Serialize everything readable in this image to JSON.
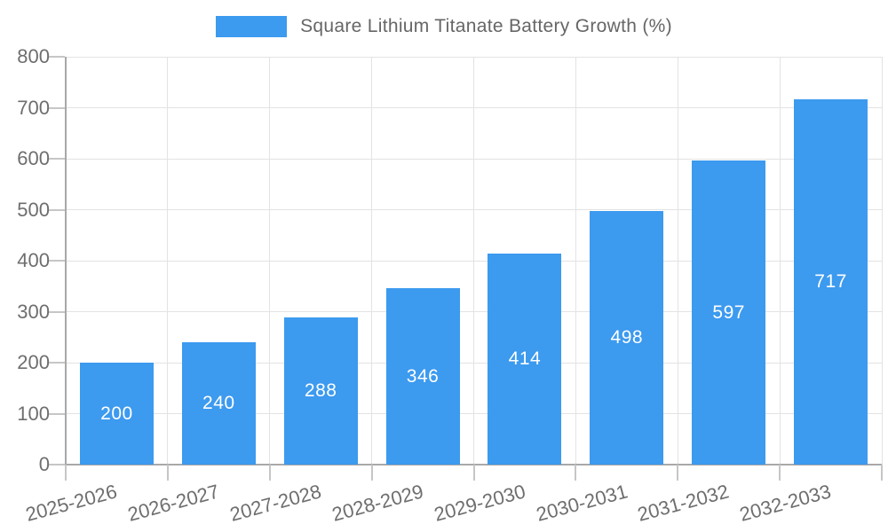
{
  "legend": {
    "label": "Square Lithium Titanate Battery Growth (%)"
  },
  "chart_data": {
    "type": "bar",
    "title": "Square Lithium Titanate Battery Growth (%)",
    "categories": [
      "2025-2026",
      "2026-2027",
      "2027-2028",
      "2028-2029",
      "2029-2030",
      "2030-2031",
      "2031-2032",
      "2032-2033"
    ],
    "values": [
      200,
      240,
      288,
      346,
      414,
      498,
      597,
      717
    ],
    "xlabel": "",
    "ylabel": "",
    "ylim": [
      0,
      800
    ],
    "ytick_step": 100,
    "yticks": [
      0,
      100,
      200,
      300,
      400,
      500,
      600,
      700,
      800
    ],
    "grid": true,
    "legend_position": "top",
    "bar_color": "#3c9aef",
    "value_label_color": "#ffffff",
    "axis_color": "#a8a8a8",
    "grid_color": "#e3e3e3",
    "tick_color": "#c6c6c6",
    "text_color": "#6e6e6e"
  }
}
